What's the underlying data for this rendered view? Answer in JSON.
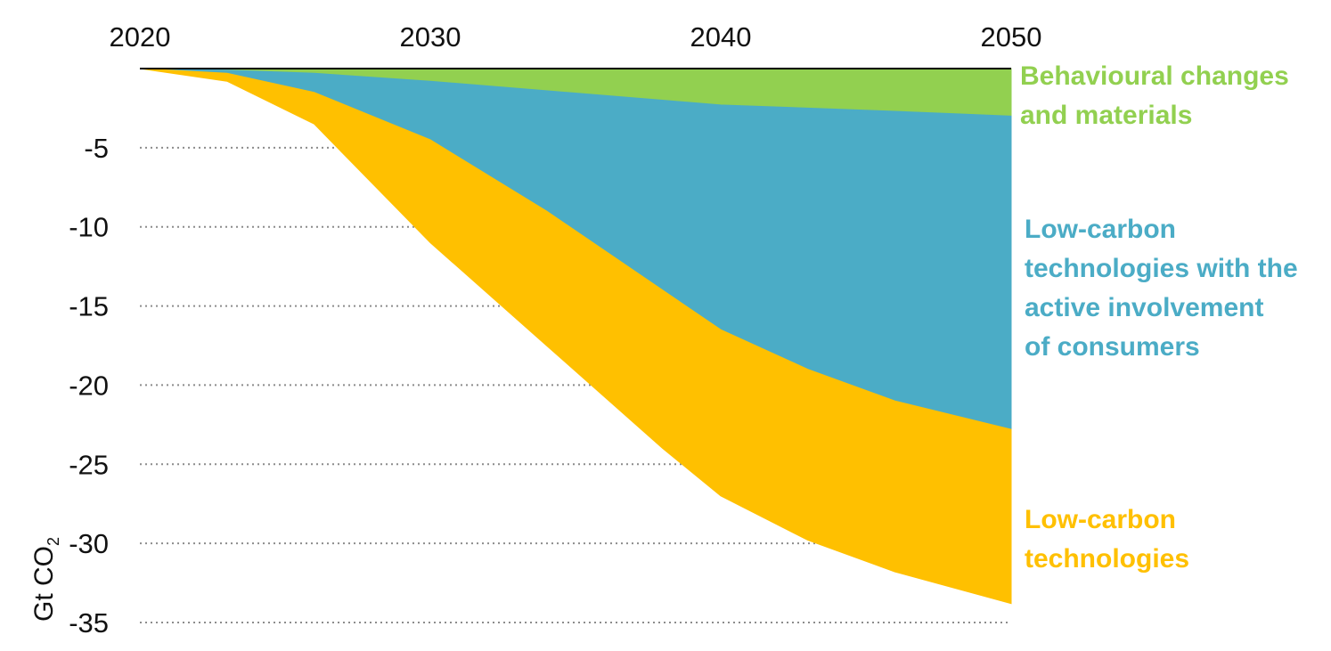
{
  "chart_data": {
    "type": "area",
    "title": "",
    "xlabel": "",
    "ylabel": {
      "text": "Gt CO",
      "subscript": "2"
    },
    "xlim": [
      2020,
      2050
    ],
    "ylim": [
      -35,
      0
    ],
    "x_ticks": [
      "2020",
      "2030",
      "2040",
      "2050"
    ],
    "y_ticks": [
      "-5",
      "-10",
      "-15",
      "-20",
      "-25",
      "-30",
      "-35"
    ],
    "grid": "dotted horizontal",
    "x": [
      2020,
      2023,
      2026,
      2030,
      2034,
      2038,
      2040,
      2043,
      2046,
      2050
    ],
    "series": [
      {
        "name": "Behavioural changes and materials",
        "label_lines": [
          "Behavioural changes",
          "and materials"
        ],
        "color": "#92d050",
        "boundary": [
          0,
          -0.1,
          -0.3,
          -0.8,
          -1.4,
          -2.0,
          -2.3,
          -2.5,
          -2.7,
          -3.0
        ]
      },
      {
        "name": "Low-carbon technologies with the active involvement of consumers",
        "label_lines": [
          "Low-carbon",
          "technologies with the",
          "active involvement",
          "of consumers"
        ],
        "color": "#4bacc6",
        "boundary": [
          0,
          -0.3,
          -1.5,
          -4.5,
          -9.0,
          -14.0,
          -16.5,
          -19.0,
          -21.0,
          -22.8
        ]
      },
      {
        "name": "Low-carbon technologies",
        "label_lines": [
          "Low-carbon",
          "technologies"
        ],
        "color": "#ffc000",
        "boundary": [
          0,
          -0.8,
          -3.5,
          -11.0,
          -17.5,
          -24.0,
          -27.0,
          -29.8,
          -31.8,
          -33.8
        ]
      }
    ]
  }
}
